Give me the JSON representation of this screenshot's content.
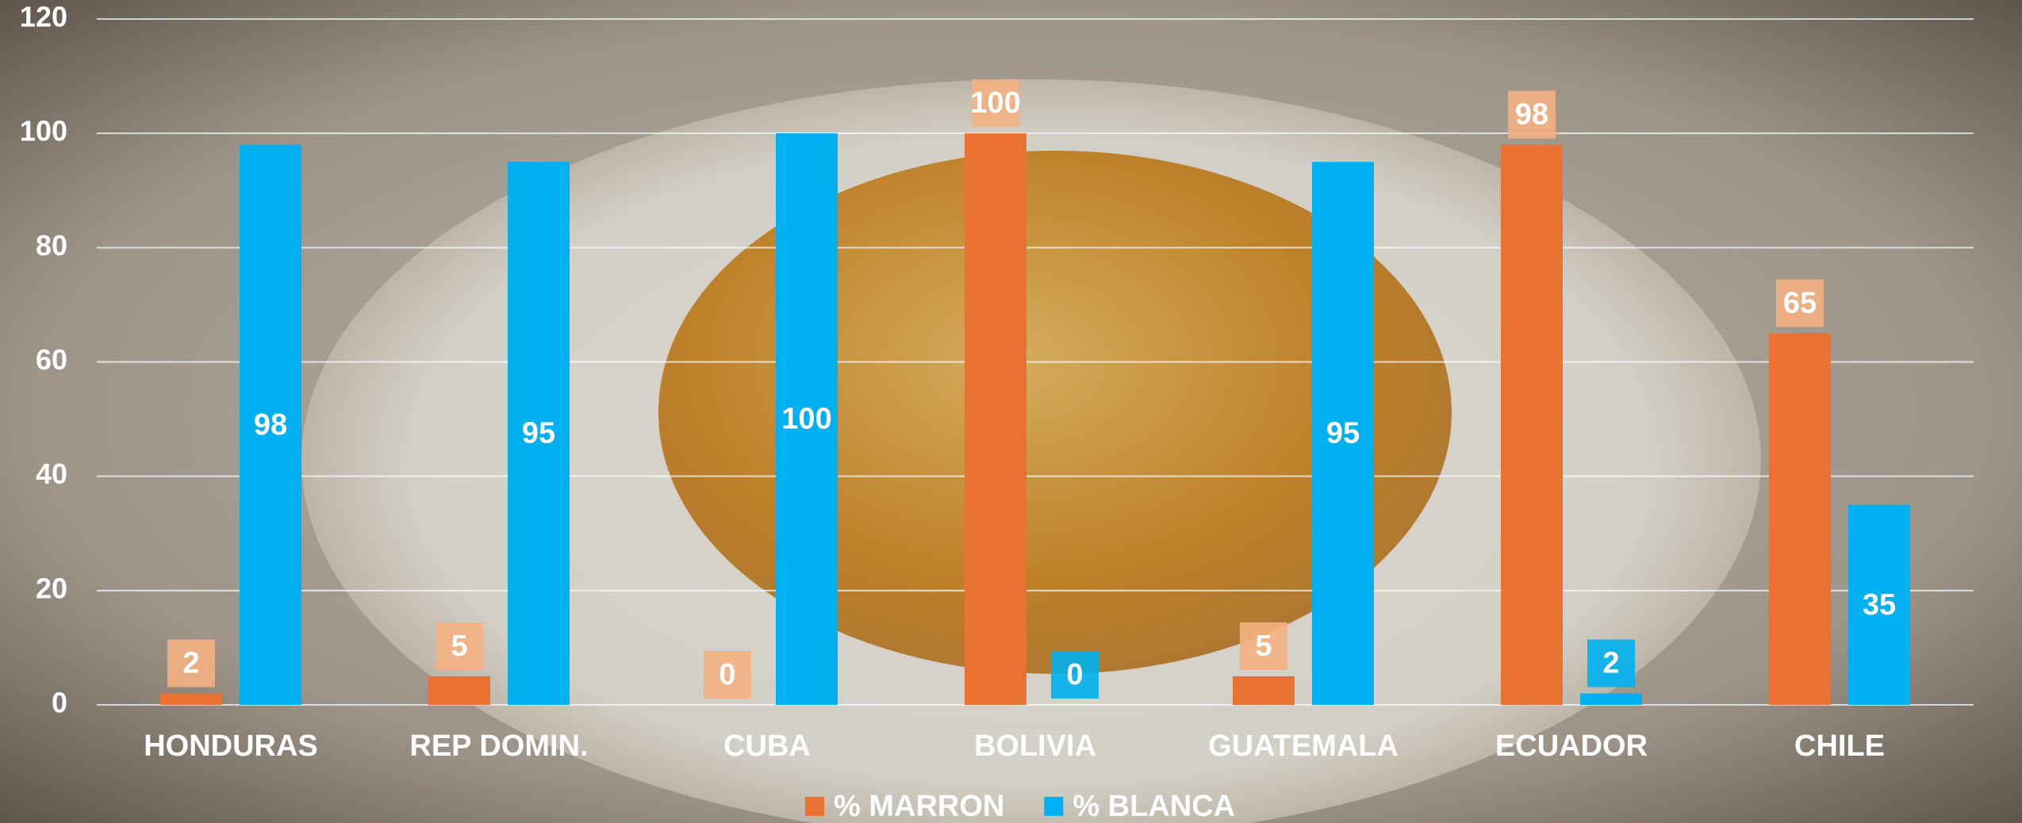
{
  "chart_data": {
    "type": "bar",
    "categories": [
      "HONDURAS",
      "REP DOMIN.",
      "CUBA",
      "BOLIVIA",
      "GUATEMALA",
      "ECUADOR",
      "CHILE"
    ],
    "series": [
      {
        "name": "% MARRON",
        "color": "#e97132",
        "values": [
          2,
          5,
          0,
          100,
          5,
          98,
          65
        ]
      },
      {
        "name": "% BLANCA",
        "color": "#00b0f0",
        "values": [
          98,
          95,
          100,
          0,
          95,
          2,
          35
        ]
      }
    ],
    "ylim": [
      0,
      120
    ],
    "yticks": [
      0,
      20,
      40,
      60,
      80,
      100,
      120
    ],
    "grid": true,
    "legend": "bottom"
  }
}
